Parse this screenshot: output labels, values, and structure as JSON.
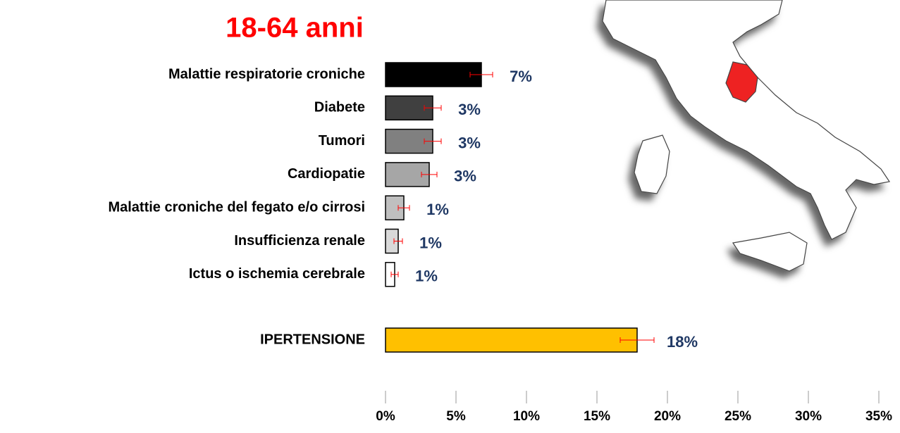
{
  "chart_data": {
    "type": "bar",
    "orientation": "horizontal",
    "title": "18-64 anni",
    "title_color": "#ff0000",
    "categories": [
      "Malattie respiratorie croniche",
      "Diabete",
      "Tumori",
      "Cardiopatie",
      "Malattie croniche del fegato e/o cirrosi",
      "Insufficienza renale",
      "Ictus o ischemia cerebrale",
      "IPERTENSIONE"
    ],
    "values": [
      6.8,
      3.35,
      3.35,
      3.1,
      1.3,
      0.9,
      0.65,
      17.85
    ],
    "value_labels": [
      "7%",
      "3%",
      "3%",
      "3%",
      "1%",
      "1%",
      "1%",
      "18%"
    ],
    "errors": [
      0.8,
      0.6,
      0.6,
      0.55,
      0.4,
      0.3,
      0.25,
      1.2
    ],
    "colors": [
      "#000000",
      "#404040",
      "#808080",
      "#a6a6a6",
      "#bfbfbf",
      "#d9d9d9",
      "#ffffff",
      "#ffc000"
    ],
    "error_color": "#ff0000",
    "xlim": [
      0,
      35
    ],
    "xticks": [
      {
        "value": 0,
        "label": "0%"
      },
      {
        "value": 5,
        "label": "5%"
      },
      {
        "value": 10,
        "label": "10%"
      },
      {
        "value": 15,
        "label": "15%"
      },
      {
        "value": 20,
        "label": "20%"
      },
      {
        "value": 25,
        "label": "25%"
      },
      {
        "value": 30,
        "label": "30%"
      },
      {
        "value": 35,
        "label": "35%"
      }
    ],
    "grid": false
  }
}
